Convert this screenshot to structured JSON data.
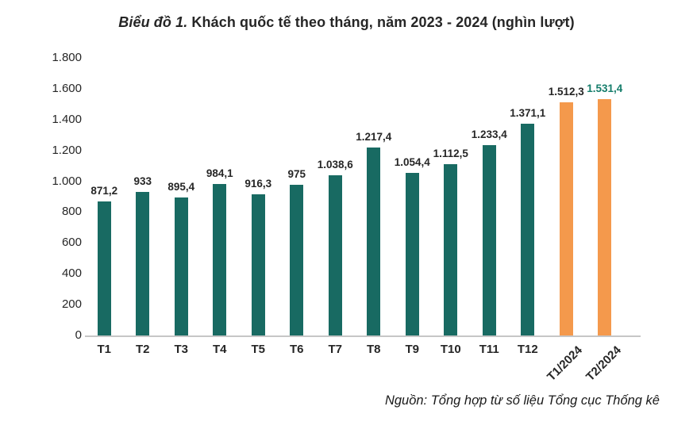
{
  "title": {
    "prefix": "Biểu đồ 1.",
    "rest": " Khách quốc tế theo tháng, năm 2023 - 2024 (nghìn lượt)"
  },
  "source": "Nguồn: Tổng hợp từ số liệu Tổng cục Thống kê",
  "colors": {
    "bar_2023": "#186a62",
    "bar_2024": "#f4994c",
    "value_label": "#262626",
    "last_value_label": "#157d6b",
    "axis_line": "#c6c6c6",
    "text": "#262626"
  },
  "chart_data": {
    "type": "bar",
    "title": "Biểu đồ 1. Khách quốc tế theo tháng, năm 2023 - 2024 (nghìn lượt)",
    "categories": [
      "T1",
      "T2",
      "T3",
      "T4",
      "T5",
      "T6",
      "T7",
      "T8",
      "T9",
      "T10",
      "T11",
      "T12",
      "T1/2024",
      "T2/2024"
    ],
    "values": [
      871.2,
      933,
      895.4,
      984.1,
      916.3,
      975,
      1038.6,
      1217.4,
      1054.4,
      1112.5,
      1233.4,
      1371.1,
      1512.3,
      1531.4
    ],
    "value_labels": [
      "871,2",
      "933",
      "895,4",
      "984,1",
      "916,3",
      "975",
      "1.038,6",
      "1.217,4",
      "1.054,4",
      "1.112,5",
      "1.233,4",
      "1.371,1",
      "1.512,3",
      "1.531,4"
    ],
    "series_split": {
      "teal_2023_count": 12,
      "orange_2024_count": 2
    },
    "rotated_label_start_index": 12,
    "xlabel": "",
    "ylabel": "",
    "ylim": [
      0,
      1800
    ],
    "yticks": [
      0,
      200,
      400,
      600,
      800,
      1000,
      1200,
      1400,
      1600,
      1800
    ],
    "ytick_labels": [
      "0",
      "200",
      "400",
      "600",
      "800",
      "1.000",
      "1.200",
      "1.400",
      "1.600",
      "1.800"
    ],
    "grid": false,
    "legend": false,
    "unit": "nghìn lượt"
  }
}
